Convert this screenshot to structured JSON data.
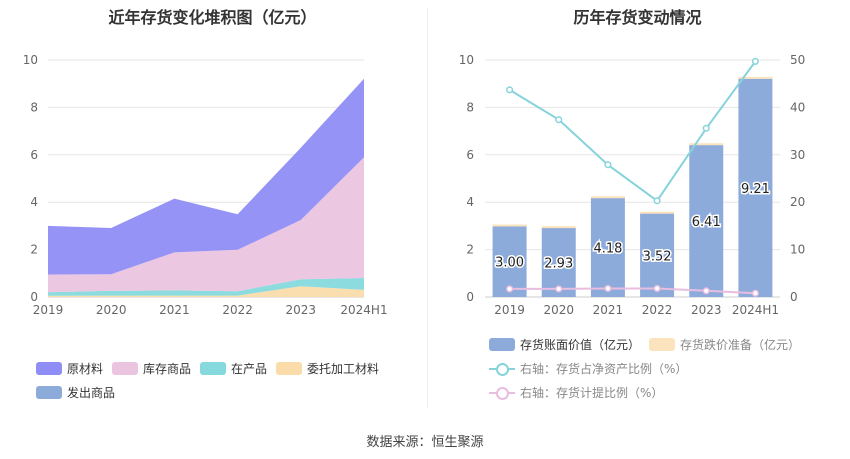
{
  "left_title": "近年存货变化堆积图（亿元）",
  "right_title": "历年存货变动情况",
  "source_text": "数据来源：恒生聚源",
  "colors": {
    "raw": "#8f8df6",
    "stock": "#ebc4e0",
    "wip": "#86d9dd",
    "outsourced": "#fadcab",
    "shipped": "#8cabdb",
    "book": "#8cabdb",
    "reserve": "#fbe3be",
    "ratio_line": "#86d3db",
    "provision_line": "#e8bde0"
  },
  "chart_data": [
    {
      "type": "area",
      "stacked": true,
      "title": "近年存货变化堆积图（亿元）",
      "categories": [
        "2019",
        "2020",
        "2021",
        "2022",
        "2023",
        "2024H1"
      ],
      "ylim": [
        0,
        10
      ],
      "yticks": [
        "0",
        "2",
        "4",
        "6",
        "8",
        "10"
      ],
      "grid": true,
      "legend_position": "bottom",
      "series": [
        {
          "name": "委托加工材料",
          "key": "outsourced",
          "values": [
            0.05,
            0.06,
            0.06,
            0.06,
            0.45,
            0.3
          ]
        },
        {
          "name": "在产品",
          "key": "wip",
          "values": [
            0.15,
            0.2,
            0.22,
            0.18,
            0.3,
            0.5
          ]
        },
        {
          "name": "库存商品",
          "key": "stock",
          "values": [
            0.75,
            0.7,
            1.6,
            1.75,
            2.5,
            5.1
          ]
        },
        {
          "name": "原材料",
          "key": "raw",
          "values": [
            2.05,
            1.95,
            2.27,
            1.5,
            3.05,
            3.31
          ]
        },
        {
          "name": "发出商品",
          "key": "shipped",
          "values": [
            0,
            0,
            0,
            0,
            0,
            0
          ]
        }
      ],
      "legend_order": [
        "原材料",
        "库存商品",
        "在产品",
        "委托加工材料",
        "发出商品"
      ]
    },
    {
      "type": "bar",
      "title": "历年存货变动情况",
      "categories": [
        "2019",
        "2020",
        "2021",
        "2022",
        "2023",
        "2024H1"
      ],
      "ylim": [
        0,
        10
      ],
      "y2lim": [
        0,
        50
      ],
      "yticks": [
        "0",
        "2",
        "4",
        "6",
        "8",
        "10"
      ],
      "y2ticks": [
        "0",
        "10",
        "20",
        "30",
        "40",
        "50"
      ],
      "grid": true,
      "legend_position": "bottom",
      "series": [
        {
          "name": "存货账面价值（亿元）",
          "key": "book",
          "axis": "left",
          "values": [
            3.0,
            2.93,
            4.18,
            3.52,
            6.41,
            9.21
          ],
          "labels": [
            "3.00",
            "2.93",
            "4.18",
            "3.52",
            "6.41",
            "9.21"
          ]
        },
        {
          "name": "存货跌价准备（亿元）",
          "key": "reserve",
          "axis": "left",
          "values": [
            0.06,
            0.06,
            0.07,
            0.08,
            0.08,
            0.08
          ]
        },
        {
          "name": "右轴：存货占净资产比例（%）",
          "key": "ratio_line",
          "axis": "right",
          "type": "line",
          "values": [
            43.7,
            37.4,
            27.9,
            20.3,
            35.6,
            49.7
          ]
        },
        {
          "name": "右轴：存货计提比例（%）",
          "key": "provision_line",
          "axis": "right",
          "type": "line",
          "values": [
            1.7,
            1.7,
            1.8,
            1.8,
            1.3,
            0.8
          ]
        }
      ]
    }
  ]
}
